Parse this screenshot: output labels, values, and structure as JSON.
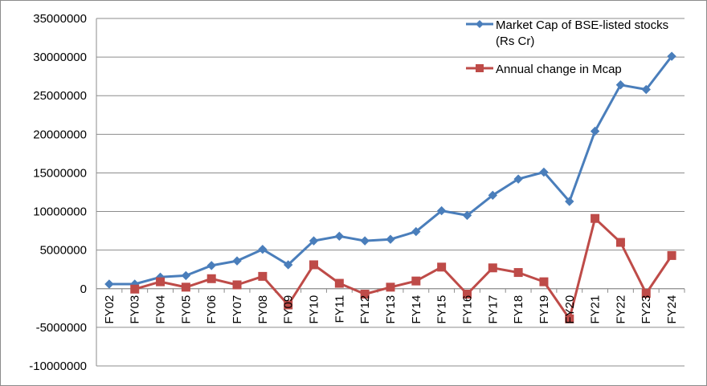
{
  "chart_data": {
    "type": "line",
    "categories": [
      "FY02",
      "FY03",
      "FY04",
      "FY05",
      "FY06",
      "FY07",
      "FY08",
      "FY09",
      "FY10",
      "FY11",
      "FY12",
      "FY13",
      "FY14",
      "FY15",
      "FY16",
      "FY17",
      "FY18",
      "FY19",
      "FY20",
      "FY21",
      "FY22",
      "FY23",
      "FY24"
    ],
    "series": [
      {
        "name": "Market Cap of BSE-listed stocks (Rs Cr)",
        "name_lines": [
          "Market Cap of BSE-listed stocks",
          "(Rs Cr)"
        ],
        "color": "#4a7ebb",
        "marker": "diamond",
        "values": [
          600000,
          600000,
          1500000,
          1700000,
          3000000,
          3600000,
          5100000,
          3100000,
          6200000,
          6800000,
          6200000,
          6400000,
          7400000,
          10100000,
          9500000,
          12100000,
          14200000,
          15100000,
          11300000,
          20400000,
          26400000,
          25800000,
          30100000
        ]
      },
      {
        "name": "Annual change in Mcap",
        "name_lines": [
          "Annual change in Mcap"
        ],
        "color": "#be4b48",
        "marker": "square",
        "values": [
          null,
          -50000,
          900000,
          200000,
          1300000,
          500000,
          1600000,
          -2100000,
          3100000,
          700000,
          -700000,
          200000,
          1000000,
          2800000,
          -700000,
          2700000,
          2100000,
          900000,
          -3900000,
          9100000,
          6000000,
          -600000,
          4300000
        ]
      }
    ],
    "ylim": [
      -10000000,
      35000000
    ],
    "yticks": [
      -10000000,
      -5000000,
      0,
      5000000,
      10000000,
      15000000,
      20000000,
      25000000,
      30000000,
      35000000
    ],
    "title": "",
    "xlabel": "",
    "ylabel": "",
    "grid": "horizontal",
    "legend_position": "top-right",
    "gridline_color": "#8c8c8c"
  }
}
